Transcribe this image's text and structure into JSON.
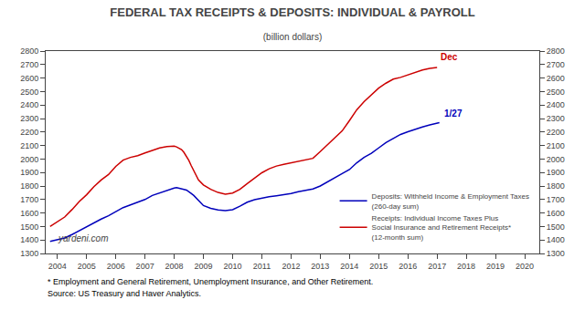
{
  "chart_data": {
    "type": "line",
    "title": "FEDERAL TAX RECEIPTS & DEPOSITS: INDIVIDUAL & PAYROLL",
    "subtitle": "(billion dollars)",
    "xlim": [
      2003.6,
      2020.5
    ],
    "xticks": [
      2004,
      2005,
      2006,
      2007,
      2008,
      2009,
      2010,
      2011,
      2012,
      2013,
      2014,
      2015,
      2016,
      2017,
      2018,
      2019,
      2020
    ],
    "ylim": [
      1300,
      2800
    ],
    "yticks": [
      1300,
      1400,
      1500,
      1600,
      1700,
      1800,
      1900,
      2000,
      2100,
      2200,
      2300,
      2400,
      2500,
      2600,
      2700,
      2800
    ],
    "y2lim": [
      1300,
      2800
    ],
    "y2ticks": [
      1300,
      1400,
      1500,
      1600,
      1700,
      1800,
      1900,
      2000,
      2100,
      2200,
      2300,
      2400,
      2500,
      2600,
      2700,
      2800
    ],
    "grid": false,
    "legend": "lower right",
    "series": [
      {
        "name": "Deposits: Withheld Income & Employment Taxes\n(260-day sum)",
        "color": "#0000BB",
        "x": [
          2003.75,
          2004.0,
          2004.25,
          2004.5,
          2004.75,
          2005.0,
          2005.25,
          2005.5,
          2005.75,
          2006.0,
          2006.25,
          2006.5,
          2006.75,
          2007.0,
          2007.25,
          2007.5,
          2007.75,
          2008.0,
          2008.08,
          2008.17,
          2008.25,
          2008.33,
          2008.42,
          2008.5,
          2008.58,
          2008.67,
          2008.75,
          2008.83,
          2009.0,
          2009.25,
          2009.5,
          2009.75,
          2010.0,
          2010.25,
          2010.5,
          2010.75,
          2011.0,
          2011.25,
          2011.5,
          2011.75,
          2012.0,
          2012.25,
          2012.5,
          2012.75,
          2013.0,
          2013.25,
          2013.5,
          2013.75,
          2014.0,
          2014.25,
          2014.5,
          2014.75,
          2015.0,
          2015.25,
          2015.5,
          2015.75,
          2016.0,
          2016.25,
          2016.5,
          2016.75,
          2017.0,
          2017.08
        ],
        "values": [
          1390,
          1400,
          1415,
          1440,
          1470,
          1500,
          1530,
          1555,
          1580,
          1610,
          1640,
          1660,
          1680,
          1700,
          1730,
          1750,
          1770,
          1785,
          1788,
          1785,
          1780,
          1775,
          1770,
          1760,
          1745,
          1730,
          1710,
          1690,
          1655,
          1635,
          1622,
          1618,
          1625,
          1650,
          1680,
          1698,
          1710,
          1720,
          1728,
          1735,
          1745,
          1758,
          1768,
          1778,
          1800,
          1832,
          1862,
          1892,
          1922,
          1972,
          2012,
          2042,
          2082,
          2122,
          2152,
          2182,
          2202,
          2222,
          2237,
          2252,
          2265,
          2270
        ]
      },
      {
        "name": "Receipts: Individual Income Taxes Plus\nSocial Insurance and Retirement Receipts*\n(12-month sum)",
        "color": "#CC0000",
        "x": [
          2003.75,
          2004.0,
          2004.25,
          2004.5,
          2004.75,
          2005.0,
          2005.25,
          2005.5,
          2005.75,
          2006.0,
          2006.25,
          2006.5,
          2006.75,
          2007.0,
          2007.25,
          2007.5,
          2007.75,
          2008.0,
          2008.08,
          2008.17,
          2008.25,
          2008.33,
          2008.42,
          2008.5,
          2008.58,
          2008.67,
          2008.75,
          2008.83,
          2009.0,
          2009.25,
          2009.5,
          2009.75,
          2010.0,
          2010.25,
          2010.5,
          2010.75,
          2011.0,
          2011.25,
          2011.5,
          2011.75,
          2012.0,
          2012.25,
          2012.5,
          2012.75,
          2013.0,
          2013.25,
          2013.5,
          2013.75,
          2014.0,
          2014.25,
          2014.5,
          2014.75,
          2015.0,
          2015.25,
          2015.5,
          2015.75,
          2016.0,
          2016.25,
          2016.5,
          2016.75,
          2017.0
        ],
        "values": [
          1500,
          1535,
          1570,
          1625,
          1685,
          1735,
          1795,
          1845,
          1885,
          1945,
          1992,
          2012,
          2025,
          2045,
          2065,
          2082,
          2092,
          2095,
          2090,
          2082,
          2070,
          2050,
          2022,
          1990,
          1952,
          1912,
          1872,
          1845,
          1808,
          1775,
          1752,
          1740,
          1748,
          1775,
          1818,
          1858,
          1898,
          1928,
          1948,
          1960,
          1970,
          1982,
          1992,
          2005,
          2055,
          2108,
          2158,
          2208,
          2285,
          2365,
          2425,
          2475,
          2525,
          2562,
          2592,
          2605,
          2625,
          2645,
          2660,
          2672,
          2678
        ]
      }
    ],
    "annotations": [
      {
        "text": "1/27",
        "x": 2017.1,
        "y": 2268,
        "color": "#0000BB"
      },
      {
        "text": "Dec",
        "x": 2016.95,
        "y": 2685,
        "color": "#CC0000"
      }
    ],
    "watermark": "yardeni.com",
    "footnotes": [
      "* Employment and General Retirement, Unemployment Insurance, and Other Retirement.",
      "Source: US Treasury and Haver Analytics."
    ]
  }
}
